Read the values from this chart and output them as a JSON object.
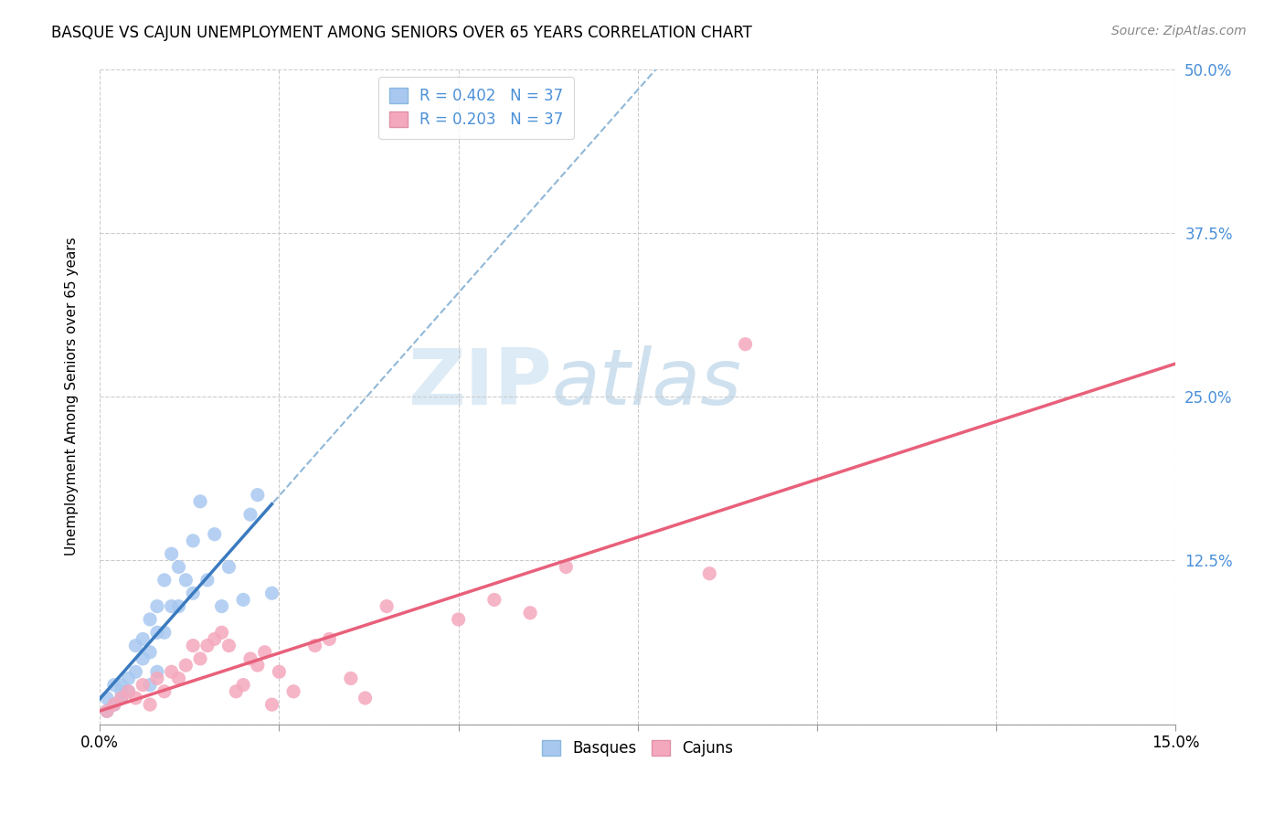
{
  "title": "BASQUE VS CAJUN UNEMPLOYMENT AMONG SENIORS OVER 65 YEARS CORRELATION CHART",
  "source": "Source: ZipAtlas.com",
  "ylabel": "Unemployment Among Seniors over 65 years",
  "xlim": [
    0.0,
    0.15
  ],
  "ylim": [
    0.0,
    0.5
  ],
  "basque_color": "#a8c8f0",
  "cajun_color": "#f4a8be",
  "basque_line_color": "#3a7abf",
  "cajun_line_color": "#e8607a",
  "trend_dashed_color": "#90b8d8",
  "R_basque": 0.402,
  "R_cajun": 0.203,
  "N_basque": 37,
  "N_cajun": 37,
  "basque_x": [
    0.001,
    0.001,
    0.002,
    0.002,
    0.003,
    0.003,
    0.003,
    0.004,
    0.004,
    0.005,
    0.005,
    0.006,
    0.006,
    0.007,
    0.007,
    0.007,
    0.008,
    0.008,
    0.008,
    0.009,
    0.009,
    0.01,
    0.01,
    0.011,
    0.011,
    0.012,
    0.013,
    0.013,
    0.014,
    0.015,
    0.016,
    0.017,
    0.018,
    0.02,
    0.021,
    0.022,
    0.024
  ],
  "basque_y": [
    0.01,
    0.02,
    0.015,
    0.03,
    0.02,
    0.025,
    0.03,
    0.025,
    0.035,
    0.04,
    0.06,
    0.05,
    0.065,
    0.055,
    0.03,
    0.08,
    0.07,
    0.09,
    0.04,
    0.07,
    0.11,
    0.09,
    0.13,
    0.09,
    0.12,
    0.11,
    0.1,
    0.14,
    0.17,
    0.11,
    0.145,
    0.09,
    0.12,
    0.095,
    0.16,
    0.175,
    0.1
  ],
  "cajun_x": [
    0.001,
    0.002,
    0.003,
    0.004,
    0.005,
    0.006,
    0.007,
    0.008,
    0.009,
    0.01,
    0.011,
    0.012,
    0.013,
    0.014,
    0.015,
    0.016,
    0.017,
    0.018,
    0.019,
    0.02,
    0.021,
    0.022,
    0.023,
    0.024,
    0.025,
    0.027,
    0.03,
    0.032,
    0.035,
    0.037,
    0.04,
    0.05,
    0.055,
    0.06,
    0.065,
    0.085,
    0.09
  ],
  "cajun_y": [
    0.01,
    0.015,
    0.02,
    0.025,
    0.02,
    0.03,
    0.015,
    0.035,
    0.025,
    0.04,
    0.035,
    0.045,
    0.06,
    0.05,
    0.06,
    0.065,
    0.07,
    0.06,
    0.025,
    0.03,
    0.05,
    0.045,
    0.055,
    0.015,
    0.04,
    0.025,
    0.06,
    0.065,
    0.035,
    0.02,
    0.09,
    0.08,
    0.095,
    0.085,
    0.12,
    0.115,
    0.29
  ],
  "watermark_zip": "ZIP",
  "watermark_atlas": "atlas",
  "grid_color": "#cccccc",
  "background_color": "#ffffff",
  "right_tick_color": "#4a90d9",
  "legend_text_color": "#4a90d9"
}
